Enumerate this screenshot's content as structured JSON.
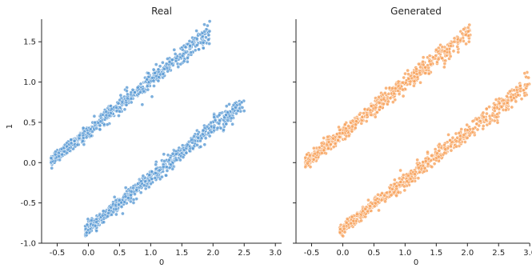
{
  "chart_data": {
    "type": "scatter",
    "shared_y": true,
    "ylabel": "1",
    "xlim": [
      -0.75,
      3.1
    ],
    "ylim": [
      -1.0,
      1.8
    ],
    "xticks": [
      "-0.5",
      "0.0",
      "0.5",
      "1.0",
      "1.5",
      "2.0",
      "2.5",
      "3.0"
    ],
    "yticks": [
      "-1.0",
      "-0.5",
      "0.0",
      "0.5",
      "1.0",
      "1.5"
    ],
    "panels": [
      {
        "title": "Real",
        "xlabel": "0",
        "color": "#5b9bd5",
        "edge_color": "#ffffff",
        "clusters": [
          {
            "x_range": [
              -0.6,
              1.95
            ],
            "y_at_start": 0.02,
            "y_at_end": 1.62,
            "spread": 0.05
          },
          {
            "x_range": [
              -0.05,
              2.5
            ],
            "y_at_start": -0.85,
            "y_at_end": 0.76,
            "spread": 0.05
          }
        ]
      },
      {
        "title": "Generated",
        "xlabel": "0",
        "color": "#f7a35c",
        "edge_color": "#ffffff",
        "clusters": [
          {
            "x_range": [
              -0.6,
              2.05
            ],
            "y_at_start": 0.0,
            "y_at_end": 1.64,
            "spread": 0.05
          },
          {
            "x_range": [
              -0.05,
              3.0
            ],
            "y_at_start": -0.85,
            "y_at_end": 0.98,
            "spread": 0.05
          }
        ]
      }
    ]
  }
}
